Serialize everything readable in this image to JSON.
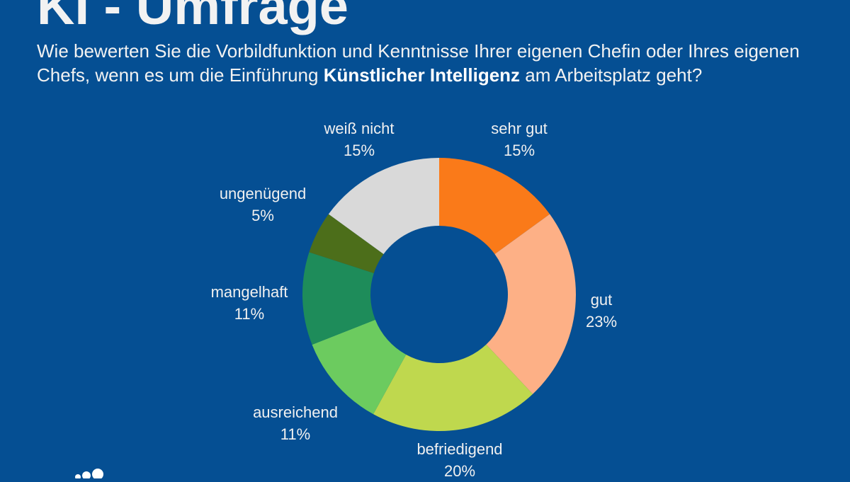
{
  "title": "KI - Umfrage",
  "subtitle": {
    "text_before": "Wie bewerten Sie die Vorbildfunktion und Kenntnisse Ihrer eigenen Chefin oder Ihres eigenen Chefs, wenn es um die Einführung ",
    "bold": "Künstlicher Intelligenz",
    "text_after": " am Arbeitsplatz geht?"
  },
  "chart_data": {
    "type": "pie",
    "variant": "donut",
    "title": "KI - Umfrage",
    "categories": [
      "sehr gut",
      "gut",
      "befriedigend",
      "ausreichend",
      "mangelhaft",
      "ungenügend",
      "weiß nicht"
    ],
    "values": [
      15,
      23,
      20,
      11,
      11,
      5,
      15
    ],
    "labels": [
      "15%",
      "23%",
      "20%",
      "11%",
      "11%",
      "5%",
      "15%"
    ],
    "colors": [
      "#fa7a19",
      "#fdb086",
      "#bfd84e",
      "#6ccb5f",
      "#1e8c5a",
      "#4c6e1a",
      "#d9d9d9"
    ],
    "start": "top",
    "direction": "clockwise"
  }
}
